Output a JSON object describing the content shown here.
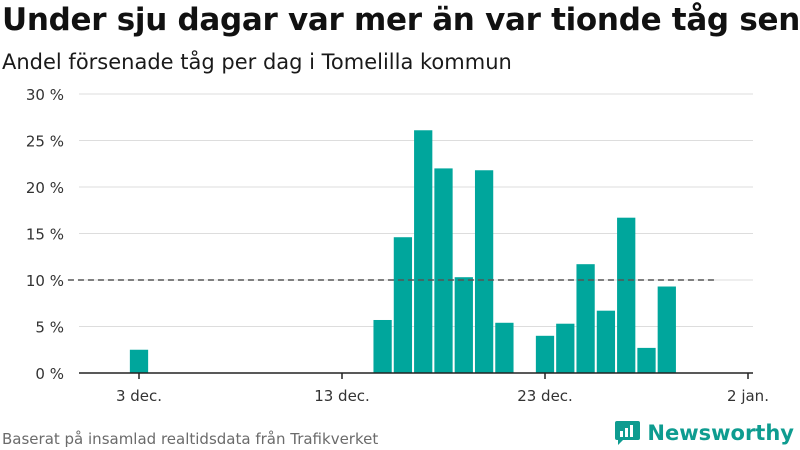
{
  "title": "Under sju dagar var mer än var tionde tåg sent",
  "subtitle": "Andel försenade tåg per dag i Tomelilla kommun",
  "footer": "Baserat på insamlad realtidsdata från Trafikverket",
  "brand": "Newsworthy",
  "colors": {
    "bar": "#00a69c",
    "reference": "#555555",
    "grid": "#dddddd",
    "brand": "#0e9c90"
  },
  "chart_data": {
    "type": "bar",
    "ylim": [
      0,
      30
    ],
    "yticks": [
      0,
      5,
      10,
      15,
      20,
      25,
      30
    ],
    "ytick_labels": [
      "0 %",
      "5 %",
      "10 %",
      "15 %",
      "20 %",
      "25 %",
      "30 %"
    ],
    "xticks": [
      {
        "date": "2019-12-03",
        "label": "3 dec."
      },
      {
        "date": "2019-12-13",
        "label": "13 dec."
      },
      {
        "date": "2019-12-23",
        "label": "23 dec."
      },
      {
        "date": "2020-01-02",
        "label": "2 jan."
      }
    ],
    "x": [
      "2019-11-30",
      "2019-12-01",
      "2019-12-02",
      "2019-12-03",
      "2019-12-04",
      "2019-12-05",
      "2019-12-06",
      "2019-12-07",
      "2019-12-08",
      "2019-12-09",
      "2019-12-10",
      "2019-12-11",
      "2019-12-12",
      "2019-12-13",
      "2019-12-14",
      "2019-12-15",
      "2019-12-16",
      "2019-12-17",
      "2019-12-18",
      "2019-12-19",
      "2019-12-20",
      "2019-12-21",
      "2019-12-22",
      "2019-12-23",
      "2019-12-24",
      "2019-12-25",
      "2019-12-26",
      "2019-12-27",
      "2019-12-28",
      "2019-12-29",
      "2019-12-30",
      "2019-12-31",
      "2020-01-01",
      "2020-01-02"
    ],
    "values": [
      null,
      null,
      null,
      2.5,
      0,
      0,
      0,
      0,
      0,
      0,
      0,
      0,
      0,
      0,
      0,
      5.7,
      14.6,
      26.1,
      22.0,
      10.3,
      21.8,
      5.4,
      null,
      4.0,
      5.3,
      11.7,
      6.7,
      16.7,
      2.7,
      9.3,
      null,
      null,
      null,
      null
    ],
    "reference": {
      "value": 10,
      "from": "2019-11-30",
      "to": "2019-12-31"
    }
  }
}
